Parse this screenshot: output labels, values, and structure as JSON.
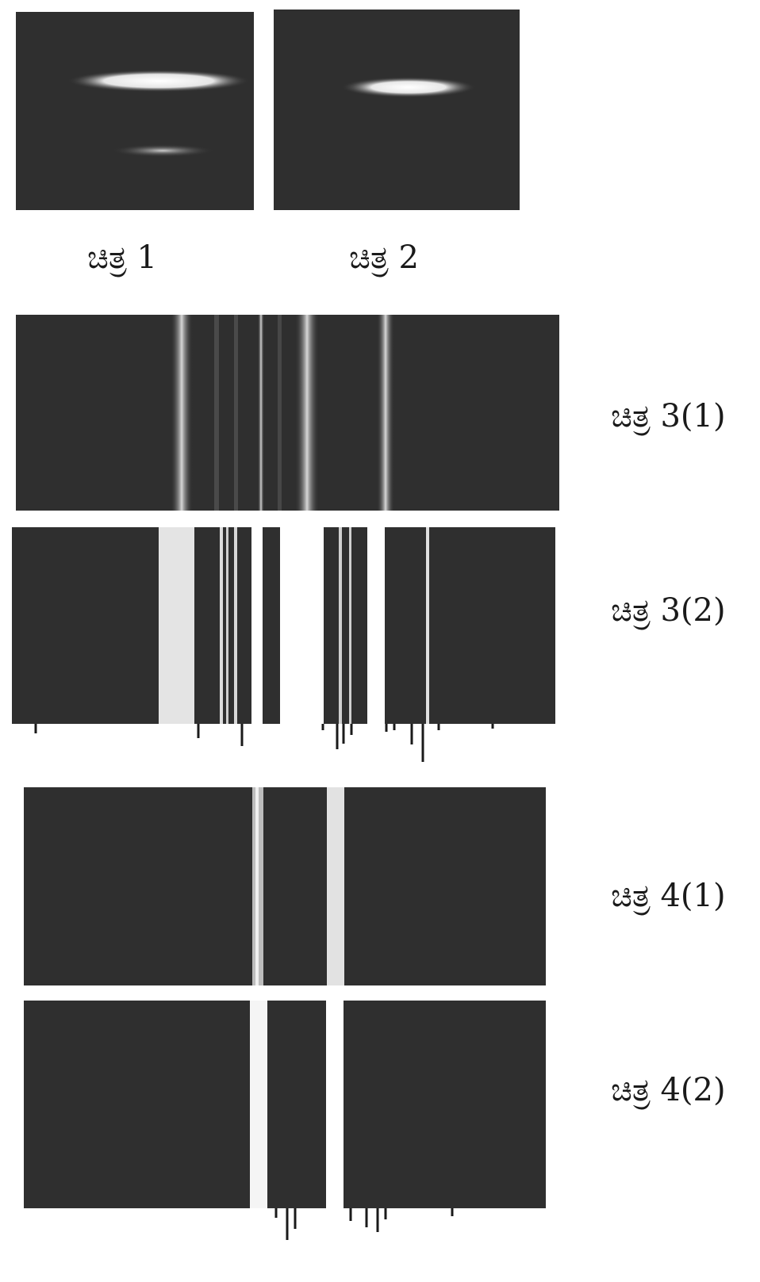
{
  "figures": {
    "fig1": {
      "caption": "ಚಿತ್ರ 1"
    },
    "fig2": {
      "caption": "ಚಿತ್ರ 2"
    },
    "fig3_1": {
      "caption": "ಚಿತ್ರ 3(1)"
    },
    "fig3_2": {
      "caption": "ಚಿತ್ರ 3(2)"
    },
    "fig4_1": {
      "caption": "ಚಿತ್ರ 4(1)"
    },
    "fig4_2": {
      "caption": "ಚಿತ್ರ 4(2)"
    }
  },
  "colors": {
    "plate_background": "#2f2f2f",
    "spectral_line": "#f2f2f2",
    "caption_text": "#1a1a1a"
  }
}
